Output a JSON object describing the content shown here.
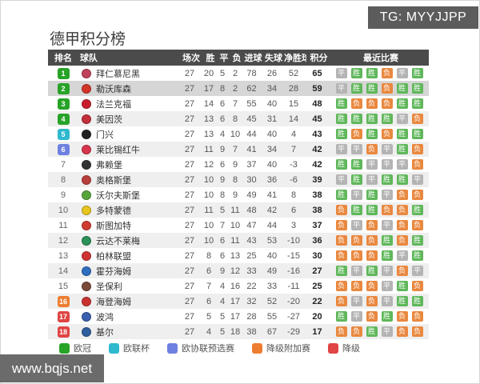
{
  "tg_tag": "TG: MYYJJPP",
  "site_watermark": "www.bqjs.net",
  "title": "德甲积分榜",
  "zone_colors": {
    "ucl": "#27a327",
    "uel": "#2fb9cf",
    "conf": "#6e80e0",
    "playoff": "#ed7d31",
    "releg": "#e04444"
  },
  "result_colors": {
    "胜": "#5fb75a",
    "平": "#b4b4b4",
    "负": "#e9883f"
  },
  "table": {
    "headers": [
      "排名",
      "球队",
      "场次",
      "胜",
      "平",
      "负",
      "进球",
      "失球",
      "净胜球",
      "积分",
      "最近比赛"
    ],
    "rows": [
      {
        "rank": 1,
        "zone": "ucl",
        "team": "拜仁慕尼黑",
        "logo_color": "#c0415a",
        "played": 27,
        "win": 20,
        "draw": 5,
        "loss": 2,
        "gf": 78,
        "ga": 26,
        "gd": 52,
        "pts": 65,
        "recent": [
          "平",
          "胜",
          "胜",
          "负",
          "平",
          "胜"
        ],
        "highlight": false
      },
      {
        "rank": 2,
        "zone": "ucl",
        "team": "勒沃库森",
        "logo_color": "#d2342a",
        "played": 27,
        "win": 17,
        "draw": 8,
        "loss": 2,
        "gf": 62,
        "ga": 34,
        "gd": 28,
        "pts": 59,
        "recent": [
          "平",
          "胜",
          "胜",
          "负",
          "胜",
          "胜"
        ],
        "highlight": true
      },
      {
        "rank": 3,
        "zone": "ucl",
        "team": "法兰克福",
        "logo_color": "#c91c2a",
        "played": 27,
        "win": 14,
        "draw": 6,
        "loss": 7,
        "gf": 55,
        "ga": 40,
        "gd": 15,
        "pts": 48,
        "recent": [
          "胜",
          "负",
          "负",
          "负",
          "胜",
          "胜"
        ],
        "highlight": false
      },
      {
        "rank": 4,
        "zone": "ucl",
        "team": "美因茨",
        "logo_color": "#c3303a",
        "played": 27,
        "win": 13,
        "draw": 6,
        "loss": 8,
        "gf": 45,
        "ga": 31,
        "gd": 14,
        "pts": 45,
        "recent": [
          "胜",
          "胜",
          "胜",
          "胜",
          "平",
          "负"
        ],
        "highlight": false
      },
      {
        "rank": 5,
        "zone": "uel",
        "team": "门兴",
        "logo_color": "#222222",
        "played": 27,
        "win": 13,
        "draw": 4,
        "loss": 10,
        "gf": 44,
        "ga": 40,
        "gd": 4,
        "pts": 43,
        "recent": [
          "胜",
          "负",
          "胜",
          "负",
          "胜",
          "胜"
        ],
        "highlight": false
      },
      {
        "rank": 6,
        "zone": "conf",
        "team": "莱比锡红牛",
        "logo_color": "#d6354c",
        "played": 27,
        "win": 11,
        "draw": 9,
        "loss": 7,
        "gf": 41,
        "ga": 34,
        "gd": 7,
        "pts": 42,
        "recent": [
          "平",
          "平",
          "负",
          "平",
          "胜",
          "负"
        ],
        "highlight": false
      },
      {
        "rank": 7,
        "zone": "none",
        "team": "弗赖堡",
        "logo_color": "#333333",
        "played": 27,
        "win": 12,
        "draw": 6,
        "loss": 9,
        "gf": 37,
        "ga": 40,
        "gd": -3,
        "pts": 42,
        "recent": [
          "胜",
          "胜",
          "平",
          "平",
          "平",
          "负"
        ],
        "highlight": false
      },
      {
        "rank": 8,
        "zone": "none",
        "team": "奥格斯堡",
        "logo_color": "#b8403c",
        "played": 27,
        "win": 10,
        "draw": 9,
        "loss": 8,
        "gf": 30,
        "ga": 36,
        "gd": -6,
        "pts": 39,
        "recent": [
          "平",
          "胜",
          "平",
          "胜",
          "胜",
          "平"
        ],
        "highlight": false
      },
      {
        "rank": 9,
        "zone": "none",
        "team": "沃尔夫斯堡",
        "logo_color": "#57a639",
        "played": 27,
        "win": 10,
        "draw": 8,
        "loss": 9,
        "gf": 49,
        "ga": 41,
        "gd": 8,
        "pts": 38,
        "recent": [
          "胜",
          "平",
          "胜",
          "平",
          "负",
          "负"
        ],
        "highlight": false
      },
      {
        "rank": 10,
        "zone": "none",
        "team": "多特蒙德",
        "logo_color": "#e8c51f",
        "played": 27,
        "win": 11,
        "draw": 5,
        "loss": 11,
        "gf": 48,
        "ga": 42,
        "gd": 6,
        "pts": 38,
        "recent": [
          "负",
          "胜",
          "胜",
          "负",
          "负",
          "胜"
        ],
        "highlight": false
      },
      {
        "rank": 11,
        "zone": "none",
        "team": "斯图加特",
        "logo_color": "#cf3a30",
        "played": 27,
        "win": 10,
        "draw": 7,
        "loss": 10,
        "gf": 47,
        "ga": 44,
        "gd": 3,
        "pts": 37,
        "recent": [
          "负",
          "平",
          "负",
          "平",
          "负",
          "负"
        ],
        "highlight": false
      },
      {
        "rank": 12,
        "zone": "none",
        "team": "云达不莱梅",
        "logo_color": "#2c9158",
        "played": 27,
        "win": 10,
        "draw": 6,
        "loss": 11,
        "gf": 43,
        "ga": 53,
        "gd": -10,
        "pts": 36,
        "recent": [
          "负",
          "负",
          "负",
          "胜",
          "负",
          "胜"
        ],
        "highlight": false
      },
      {
        "rank": 13,
        "zone": "none",
        "team": "柏林联盟",
        "logo_color": "#cf3333",
        "played": 27,
        "win": 8,
        "draw": 6,
        "loss": 13,
        "gf": 25,
        "ga": 40,
        "gd": -15,
        "pts": 30,
        "recent": [
          "负",
          "负",
          "负",
          "胜",
          "平",
          "胜"
        ],
        "highlight": false
      },
      {
        "rank": 14,
        "zone": "none",
        "team": "霍芬海姆",
        "logo_color": "#2f6fc0",
        "played": 27,
        "win": 6,
        "draw": 9,
        "loss": 12,
        "gf": 33,
        "ga": 49,
        "gd": -16,
        "pts": 27,
        "recent": [
          "胜",
          "平",
          "胜",
          "平",
          "负",
          "平"
        ],
        "highlight": false
      },
      {
        "rank": 15,
        "zone": "none",
        "team": "圣保利",
        "logo_color": "#7a4a3a",
        "played": 27,
        "win": 7,
        "draw": 4,
        "loss": 16,
        "gf": 22,
        "ga": 33,
        "gd": -11,
        "pts": 25,
        "recent": [
          "负",
          "负",
          "负",
          "平",
          "胜",
          "负"
        ],
        "highlight": false
      },
      {
        "rank": 16,
        "zone": "playoff",
        "team": "海登海姆",
        "logo_color": "#c8332f",
        "played": 27,
        "win": 6,
        "draw": 4,
        "loss": 17,
        "gf": 32,
        "ga": 52,
        "gd": -20,
        "pts": 22,
        "recent": [
          "负",
          "平",
          "负",
          "平",
          "胜",
          "胜"
        ],
        "highlight": false
      },
      {
        "rank": 17,
        "zone": "releg",
        "team": "波鸿",
        "logo_color": "#3a5fae",
        "played": 27,
        "win": 5,
        "draw": 5,
        "loss": 17,
        "gf": 28,
        "ga": 55,
        "gd": -27,
        "pts": 20,
        "recent": [
          "胜",
          "平",
          "负",
          "胜",
          "负",
          "负"
        ],
        "highlight": false
      },
      {
        "rank": 18,
        "zone": "releg",
        "team": "基尔",
        "logo_color": "#2f5e9e",
        "played": 27,
        "win": 4,
        "draw": 5,
        "loss": 18,
        "gf": 38,
        "ga": 67,
        "gd": -29,
        "pts": 17,
        "recent": [
          "负",
          "负",
          "胜",
          "平",
          "负",
          "负"
        ],
        "highlight": false
      }
    ]
  },
  "legend": [
    {
      "label": "欧冠",
      "color": "#27a327"
    },
    {
      "label": "欧联杯",
      "color": "#2fb9cf"
    },
    {
      "label": "欧协联预选赛",
      "color": "#6e80e0"
    },
    {
      "label": "降级附加赛",
      "color": "#ed7d31"
    },
    {
      "label": "降级",
      "color": "#e04444"
    }
  ]
}
